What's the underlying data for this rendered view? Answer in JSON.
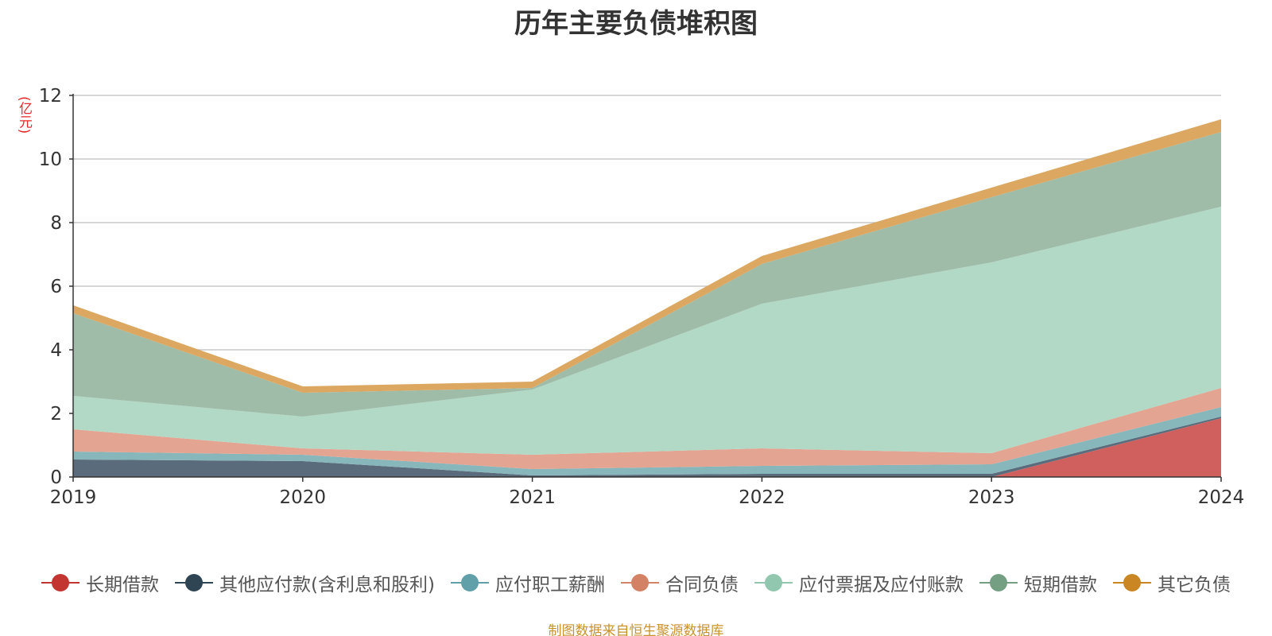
{
  "chart_data": {
    "type": "area",
    "stacked": true,
    "title": "历年主要负债堆积图",
    "ylabel": "(亿元)",
    "x": [
      "2019",
      "2020",
      "2021",
      "2022",
      "2023",
      "2024"
    ],
    "ylim": [
      0,
      12
    ],
    "yticks": [
      "0",
      "2",
      "4",
      "6",
      "8",
      "10",
      "12"
    ],
    "grid": true,
    "legend_position": "bottom",
    "source": "制图数据来自恒生聚源数据库",
    "series": [
      {
        "name": "长期借款",
        "color": "#d0605e",
        "dot_color": "#c23531",
        "values": [
          0,
          0,
          0,
          0,
          0,
          1.85
        ]
      },
      {
        "name": "其他应付款(含利息和股利)",
        "color": "#5a6b7b",
        "dot_color": "#2f4554",
        "values": [
          0.55,
          0.5,
          0.05,
          0.1,
          0.1,
          0.05
        ]
      },
      {
        "name": "应付职工薪酬",
        "color": "#87b6bb",
        "dot_color": "#61a0a8",
        "values": [
          0.25,
          0.2,
          0.2,
          0.25,
          0.3,
          0.3
        ]
      },
      {
        "name": "合同负债",
        "color": "#e3a492",
        "dot_color": "#d48265",
        "values": [
          0.7,
          0.2,
          0.45,
          0.55,
          0.35,
          0.6
        ]
      },
      {
        "name": "应付票据及应付账款",
        "color": "#b2d9c6",
        "dot_color": "#91c7ae",
        "values": [
          1.05,
          1.0,
          2.05,
          4.55,
          6.0,
          5.7
        ]
      },
      {
        "name": "短期借款",
        "color": "#9fbca8",
        "dot_color": "#749f83",
        "values": [
          2.6,
          0.75,
          0.05,
          1.25,
          2.05,
          2.35
        ]
      },
      {
        "name": "其它负债",
        "color": "#dba761",
        "dot_color": "#ca8622",
        "values": [
          0.25,
          0.2,
          0.2,
          0.25,
          0.3,
          0.4
        ]
      }
    ]
  }
}
